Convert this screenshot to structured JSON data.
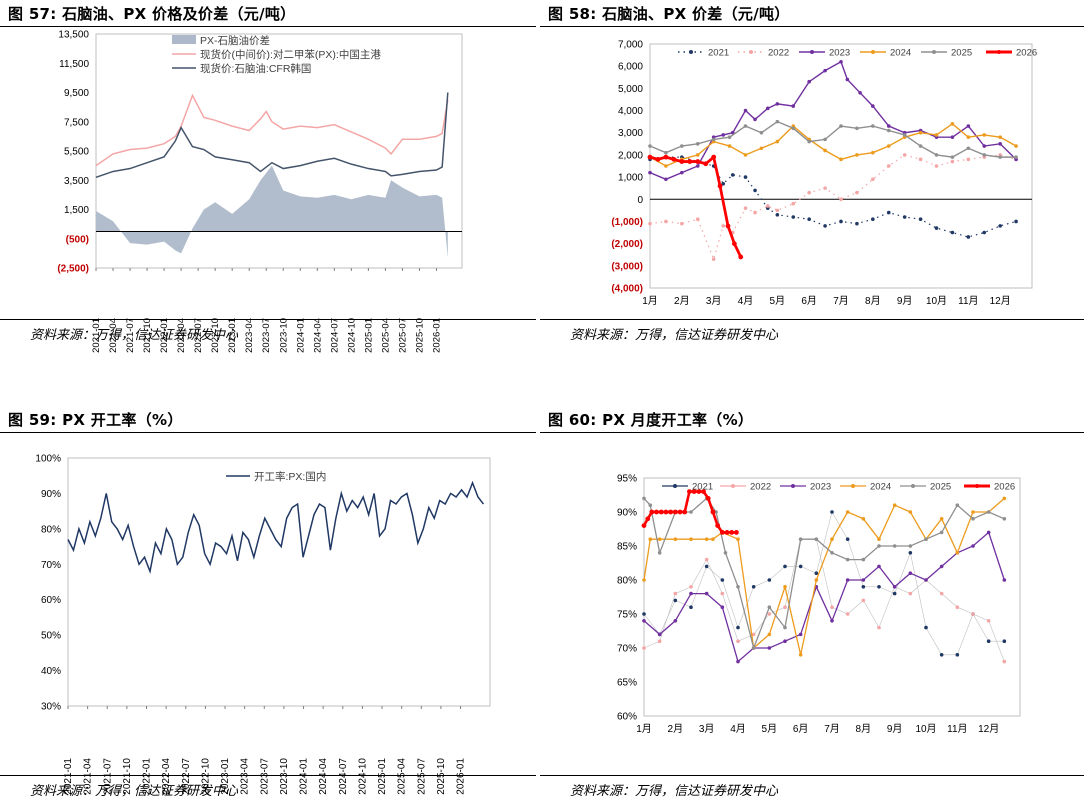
{
  "panels": [
    {
      "title": "图 57:  石脑油、PX 价格及价差（元/吨）",
      "source": "资料来源：万得，信达证券研发中心"
    },
    {
      "title": "图 58:  石脑油、PX 价差（元/吨）",
      "source": "资料来源：万得，信达证券研发中心"
    },
    {
      "title": "图 59:  PX 开工率（%）",
      "source": "资料来源：万得，信达证券研发中心"
    },
    {
      "title": "图 60:  PX 月度开工率（%）",
      "source": "资料来源：万得，信达证券研发中心"
    }
  ],
  "chart_data": [
    {
      "type": "area",
      "ylim": [
        -2500,
        13500
      ],
      "yticks": [
        13500,
        11500,
        9500,
        7500,
        5500,
        3500,
        1500,
        -500,
        -2500
      ],
      "ytick_labels": [
        "13,500",
        "11,500",
        "9,500",
        "7,500",
        "5,500",
        "3,500",
        "1,500",
        "(500)",
        "(2,500)"
      ],
      "negative_tick_color": "#c00000",
      "xtick_labels": [
        "2021-01",
        "2021-04",
        "2021-07",
        "2021-10",
        "2022-01",
        "2022-04",
        "2022-07",
        "2022-10",
        "2023-01",
        "2023-04",
        "2023-07",
        "2023-10",
        "2024-01",
        "2024-04",
        "2024-07",
        "2024-10",
        "2025-01",
        "2025-04",
        "2025-07",
        "2025-10",
        "2026-01"
      ],
      "x_dates": [
        "2021-01",
        "2021-04",
        "2021-07",
        "2021-10",
        "2022-01",
        "2022-03",
        "2022-04",
        "2022-06",
        "2022-08",
        "2022-10",
        "2023-01",
        "2023-04",
        "2023-06",
        "2023-07",
        "2023-08",
        "2023-10",
        "2024-01",
        "2024-04",
        "2024-07",
        "2024-10",
        "2025-01",
        "2025-04",
        "2025-05",
        "2025-07",
        "2025-10",
        "2026-01",
        "2026-02",
        "2026-03"
      ],
      "legend": [
        "PX-石脑油价差",
        "现货价(中间价):对二甲苯(PX):中国主港",
        "现货价:石脑油:CFR韩国"
      ],
      "series": [
        {
          "name": "PX-石脑油价差",
          "color": "#adb9ca",
          "values": [
            1400,
            700,
            -800,
            -900,
            -700,
            -1300,
            -1500,
            200,
            1500,
            2000,
            1200,
            2200,
            3500,
            4000,
            4500,
            2800,
            2400,
            2300,
            2500,
            2200,
            2500,
            2300,
            3500,
            3000,
            2400,
            2500,
            2300,
            -1800
          ]
        },
        {
          "name": "现货价(中间价):对二甲苯(PX):中国主港",
          "color": "#f4a6a6",
          "values": [
            4500,
            5300,
            5600,
            5700,
            6000,
            6500,
            7200,
            9300,
            7800,
            7600,
            7200,
            6900,
            7700,
            8200,
            7500,
            7000,
            7200,
            7100,
            7300,
            6800,
            6300,
            5700,
            5300,
            6300,
            6300,
            6500,
            6700,
            9000
          ]
        },
        {
          "name": "现货价:石脑油:CFR韩国",
          "color": "#44546a",
          "values": [
            3700,
            4100,
            4300,
            4700,
            5100,
            6200,
            7100,
            5800,
            5600,
            5100,
            4900,
            4700,
            4100,
            4400,
            4700,
            4300,
            4500,
            4800,
            5000,
            4600,
            4300,
            4100,
            3800,
            3900,
            4100,
            4200,
            4400,
            9500
          ]
        }
      ]
    },
    {
      "type": "line",
      "ylim": [
        -4000,
        7000
      ],
      "yticks": [
        7000,
        6000,
        5000,
        4000,
        3000,
        2000,
        1000,
        0,
        -1000,
        -2000,
        -3000,
        -4000
      ],
      "ytick_labels": [
        "7,000",
        "6,000",
        "5,000",
        "4,000",
        "3,000",
        "2,000",
        "1,000",
        "0",
        "(1,000)",
        "(2,000)",
        "(3,000)",
        "(4,000)"
      ],
      "negative_tick_color": "#c00000",
      "categories": [
        "1月",
        "2月",
        "3月",
        "4月",
        "5月",
        "6月",
        "7月",
        "8月",
        "9月",
        "10月",
        "11月",
        "12月"
      ],
      "legend": [
        "2021",
        "2022",
        "2023",
        "2024",
        "2025",
        "2026"
      ],
      "series": [
        {
          "name": "2021",
          "color": "#203864",
          "x": [
            1,
            1.5,
            2,
            2.5,
            3,
            3.3,
            3.6,
            4,
            4.3,
            4.7,
            5,
            5.5,
            6,
            6.5,
            7,
            7.5,
            8,
            8.5,
            9,
            9.5,
            10,
            10.5,
            11,
            11.5,
            12,
            12.5
          ],
          "values": [
            1800,
            1900,
            1900,
            1700,
            1500,
            700,
            1100,
            1000,
            400,
            -400,
            -700,
            -800,
            -900,
            -1200,
            -1000,
            -1100,
            -900,
            -600,
            -800,
            -900,
            -1300,
            -1500,
            -1700,
            -1500,
            -1200,
            -1000
          ]
        },
        {
          "name": "2022",
          "color": "#f4a6a6",
          "x": [
            1,
            1.5,
            2,
            2.5,
            3,
            3.3,
            3.6,
            4,
            4.3,
            4.7,
            5,
            5.5,
            6,
            6.5,
            7,
            7.5,
            8,
            8.5,
            9,
            9.5,
            10,
            10.5,
            11,
            11.5,
            12,
            12.5
          ],
          "values": [
            -1100,
            -1000,
            -1100,
            -900,
            -2700,
            -1200,
            -1500,
            -400,
            -600,
            -300,
            -500,
            -200,
            300,
            500,
            0,
            300,
            900,
            1500,
            2000,
            1800,
            1500,
            1700,
            1800,
            1900,
            2000,
            1800
          ]
        },
        {
          "name": "2023",
          "color": "#7030a0",
          "x": [
            1,
            1.5,
            2,
            2.5,
            3,
            3.3,
            3.6,
            4,
            4.3,
            4.7,
            5,
            5.5,
            6,
            6.5,
            7,
            7.2,
            7.6,
            8,
            8.5,
            9,
            9.5,
            10,
            10.5,
            11,
            11.5,
            12,
            12.5
          ],
          "values": [
            1200,
            900,
            1200,
            1500,
            2800,
            2900,
            3000,
            4000,
            3600,
            4100,
            4300,
            4200,
            5300,
            5800,
            6200,
            5400,
            4800,
            4200,
            3300,
            3000,
            3100,
            2800,
            2800,
            3300,
            2400,
            2500,
            1800
          ]
        },
        {
          "name": "2024",
          "color": "#ed9b1c",
          "x": [
            1,
            1.5,
            2,
            2.5,
            3,
            3.5,
            4,
            4.5,
            5,
            5.5,
            6,
            6.5,
            7,
            7.5,
            8,
            8.5,
            9,
            9.5,
            10,
            10.5,
            11,
            11.5,
            12,
            12.5
          ],
          "values": [
            1900,
            1500,
            1800,
            2000,
            2600,
            2400,
            2000,
            2300,
            2600,
            3300,
            2700,
            2200,
            1800,
            2000,
            2100,
            2400,
            2800,
            3000,
            2900,
            3400,
            2800,
            2900,
            2800,
            2400
          ]
        },
        {
          "name": "2025",
          "color": "#8f8f8f",
          "x": [
            1,
            1.5,
            2,
            2.5,
            3,
            3.5,
            4,
            4.5,
            5,
            5.5,
            6,
            6.5,
            7,
            7.5,
            8,
            8.5,
            9,
            9.5,
            10,
            10.5,
            11,
            11.5,
            12,
            12.5
          ],
          "values": [
            2400,
            2100,
            2400,
            2500,
            2700,
            2800,
            3300,
            3000,
            3500,
            3200,
            2600,
            2700,
            3300,
            3200,
            3300,
            3100,
            2900,
            2400,
            2000,
            1900,
            2300,
            2000,
            1900,
            1900
          ]
        },
        {
          "name": "2026",
          "color": "#ff0000",
          "x": [
            1,
            1.25,
            1.5,
            1.75,
            2,
            2.25,
            2.5,
            2.75,
            3,
            3.2,
            3.45,
            3.65,
            3.85
          ],
          "values": [
            1900,
            1800,
            1900,
            1800,
            1700,
            1700,
            1700,
            1600,
            1900,
            600,
            -1200,
            -2000,
            -2600
          ]
        }
      ]
    },
    {
      "type": "line",
      "ylim": [
        30,
        100
      ],
      "yticks": [
        100,
        90,
        80,
        70,
        60,
        50,
        40,
        30
      ],
      "ytick_labels": [
        "100%",
        "90%",
        "80%",
        "70%",
        "60%",
        "50%",
        "40%",
        "30%"
      ],
      "xtick_labels": [
        "2021-01",
        "2021-04",
        "2021-07",
        "2021-10",
        "2022-01",
        "2022-04",
        "2022-07",
        "2022-10",
        "2023-01",
        "2023-04",
        "2023-07",
        "2023-10",
        "2024-01",
        "2024-04",
        "2024-07",
        "2024-10",
        "2025-01",
        "2025-04",
        "2025-07",
        "2025-10",
        "2026-01"
      ],
      "legend": [
        "开工率:PX:国内"
      ],
      "series": [
        {
          "name": "开工率:PX:国内",
          "color": "#203864",
          "values": [
            77,
            74,
            80,
            76,
            82,
            78,
            83,
            90,
            82,
            80,
            77,
            81,
            75,
            70,
            72,
            68,
            76,
            73,
            80,
            77,
            70,
            72,
            79,
            84,
            81,
            73,
            70,
            76,
            75,
            73,
            78,
            71,
            79,
            77,
            72,
            78,
            83,
            80,
            77,
            75,
            83,
            86,
            87,
            72,
            78,
            84,
            87,
            86,
            74,
            83,
            90,
            85,
            88,
            86,
            89,
            84,
            90,
            78,
            80,
            88,
            87,
            89,
            90,
            84,
            76,
            80,
            86,
            83,
            88,
            87,
            90,
            89,
            91,
            89,
            93,
            89,
            87
          ]
        }
      ]
    },
    {
      "type": "line",
      "ylim": [
        60,
        95
      ],
      "yticks": [
        95,
        90,
        85,
        80,
        75,
        70,
        65,
        60
      ],
      "ytick_labels": [
        "95%",
        "90%",
        "85%",
        "80%",
        "75%",
        "70%",
        "65%",
        "60%"
      ],
      "categories": [
        "1月",
        "2月",
        "3月",
        "4月",
        "5月",
        "6月",
        "7月",
        "8月",
        "9月",
        "10月",
        "11月",
        "12月"
      ],
      "legend": [
        "2021",
        "2022",
        "2023",
        "2024",
        "2025",
        "2026"
      ],
      "series": [
        {
          "name": "2021",
          "color": "#203864",
          "x": [
            1,
            1.5,
            2,
            2.5,
            3,
            3.5,
            4,
            4.5,
            5,
            5.5,
            6,
            6.5,
            7,
            7.5,
            8,
            8.5,
            9,
            9.5,
            10,
            10.5,
            11,
            11.5,
            12,
            12.5
          ],
          "values": [
            75,
            72,
            77,
            76,
            82,
            80,
            73,
            79,
            80,
            82,
            82,
            81,
            90,
            86,
            79,
            79,
            78,
            84,
            73,
            69,
            69,
            75,
            71,
            71
          ]
        },
        {
          "name": "2022",
          "color": "#f4a6a6",
          "x": [
            1,
            1.5,
            2,
            2.5,
            3,
            3.5,
            4,
            4.5,
            5,
            5.5,
            6,
            6.5,
            7,
            7.5,
            8,
            8.5,
            9,
            9.5,
            10,
            10.5,
            11,
            11.5,
            12,
            12.5
          ],
          "values": [
            70,
            71,
            78,
            79,
            83,
            78,
            71,
            72,
            75,
            76,
            86,
            86,
            76,
            75,
            77,
            73,
            79,
            78,
            80,
            78,
            76,
            75,
            74,
            68
          ]
        },
        {
          "name": "2023",
          "color": "#7030a0",
          "x": [
            1,
            1.5,
            2,
            2.5,
            3,
            3.5,
            4,
            4.5,
            5,
            5.5,
            6,
            6.5,
            7,
            7.5,
            8,
            8.5,
            9,
            9.5,
            10,
            10.5,
            11,
            11.5,
            12,
            12.5
          ],
          "values": [
            74,
            72,
            74,
            78,
            78,
            76,
            68,
            70,
            70,
            71,
            72,
            79,
            74,
            80,
            80,
            82,
            79,
            81,
            80,
            82,
            84,
            85,
            87,
            80
          ]
        },
        {
          "name": "2024",
          "color": "#ed9b1c",
          "x": [
            1,
            1.2,
            1.5,
            2,
            2.5,
            3,
            3.2,
            3.5,
            4,
            4.5,
            5,
            5.5,
            6,
            6.5,
            7,
            7.5,
            8,
            8.5,
            9,
            9.5,
            10,
            10.5,
            11,
            11.5,
            12,
            12.5
          ],
          "values": [
            80,
            86,
            86,
            86,
            86,
            86,
            86,
            87,
            86,
            70,
            72,
            79,
            69,
            80,
            86,
            90,
            89,
            86,
            91,
            90,
            86,
            89,
            84,
            90,
            90,
            92
          ]
        },
        {
          "name": "2025",
          "color": "#8f8f8f",
          "x": [
            1,
            1.2,
            1.5,
            2,
            2.5,
            3,
            3.3,
            3.6,
            4,
            4.5,
            5,
            5.5,
            6,
            6.5,
            7,
            7.5,
            8,
            8.5,
            9,
            9.5,
            10,
            10.5,
            11,
            11.5,
            12,
            12.5
          ],
          "values": [
            92,
            91,
            84,
            90,
            90,
            92,
            90,
            84,
            79,
            70,
            76,
            73,
            86,
            86,
            84,
            83,
            83,
            85,
            85,
            85,
            86,
            87,
            91,
            89,
            90,
            89
          ]
        },
        {
          "name": "2026",
          "color": "#ff0000",
          "x": [
            1,
            1.12,
            1.25,
            1.4,
            1.55,
            1.7,
            1.85,
            2,
            2.15,
            2.3,
            2.45,
            2.6,
            2.75,
            2.9,
            3.05,
            3.2,
            3.35,
            3.5,
            3.65,
            3.8,
            3.95
          ],
          "values": [
            88,
            89,
            90,
            90,
            90,
            90,
            90,
            90,
            90,
            90,
            93,
            93,
            93,
            93,
            92,
            90,
            88,
            87,
            87,
            87,
            87
          ]
        }
      ]
    }
  ]
}
